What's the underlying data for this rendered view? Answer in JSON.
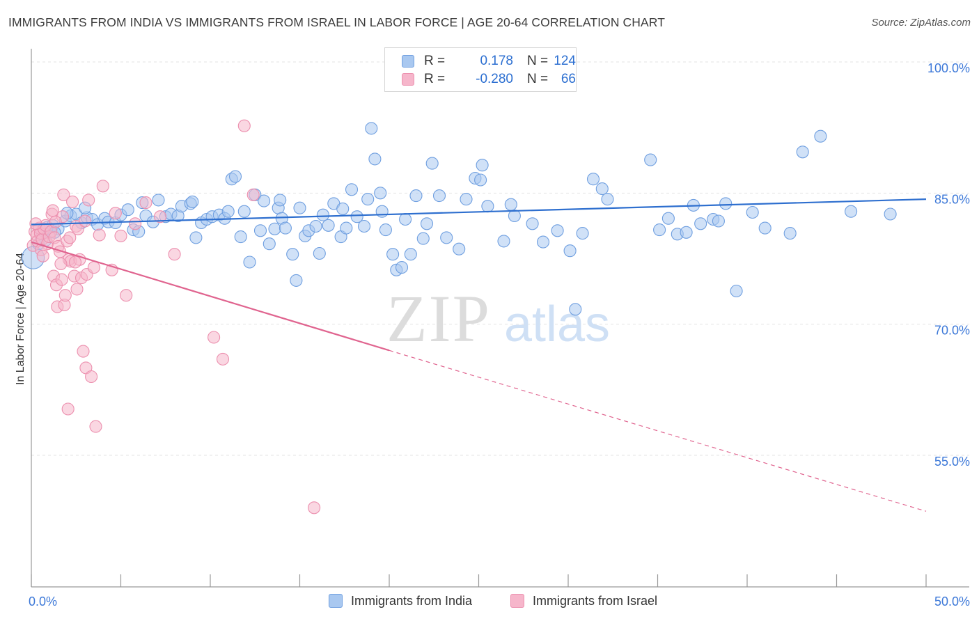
{
  "title": "IMMIGRANTS FROM INDIA VS IMMIGRANTS FROM ISRAEL IN LABOR FORCE | AGE 20-64 CORRELATION CHART",
  "source": "Source: ZipAtlas.com",
  "watermark": {
    "zip": "ZIP",
    "atlas": "atlas"
  },
  "legend": {
    "rows": [
      {
        "r_label": "R =",
        "r_value": "0.178",
        "n_label": "N =",
        "n_value": "124"
      },
      {
        "r_label": "R =",
        "r_value": "-0.280",
        "n_label": "N =",
        "n_value": "66"
      }
    ]
  },
  "bottom_legend": [
    "Immigrants from India",
    "Immigrants from Israel"
  ],
  "colors": {
    "india_fill": "#a9c8f0",
    "india_stroke": "#6f9fe0",
    "india_line": "#2e6fcf",
    "israel_fill": "#f6b6cb",
    "israel_stroke": "#ec8fae",
    "israel_line": "#e0648f",
    "tick_label": "#3c78d8",
    "grid": "#e3e3e3"
  },
  "chart_data": {
    "type": "scatter",
    "title": "IMMIGRANTS FROM INDIA VS IMMIGRANTS FROM ISRAEL IN LABOR FORCE | AGE 20-64 CORRELATION CHART",
    "xlabel": "",
    "ylabel": "In Labor Force | Age 20-64",
    "xlim": [
      0,
      50
    ],
    "ylim": [
      40,
      103
    ],
    "x_tick_labels": [
      {
        "value": 0,
        "label": "0.0%"
      },
      {
        "value": 50,
        "label": "50.0%"
      }
    ],
    "y_tick_labels": [
      {
        "value": 100,
        "label": "100.0%"
      },
      {
        "value": 85,
        "label": "85.0%"
      },
      {
        "value": 70,
        "label": "70.0%"
      },
      {
        "value": 55,
        "label": "55.0%"
      }
    ],
    "grid": true,
    "legend_position": "top-center",
    "series": [
      {
        "name": "Immigrants from India",
        "color": "#a9c8f0",
        "trend": {
          "x": [
            0,
            50
          ],
          "y": [
            81.4,
            84.3
          ],
          "style": "solid"
        },
        "points": [
          [
            0.1,
            77.6
          ],
          [
            0.4,
            79.2
          ],
          [
            0.6,
            80.3
          ],
          [
            0.9,
            81.1
          ],
          [
            1.2,
            81.3
          ],
          [
            1.5,
            80.9
          ],
          [
            1.9,
            81.8
          ],
          [
            2.2,
            82.4
          ],
          [
            2.5,
            82.6
          ],
          [
            2.8,
            81.6
          ],
          [
            3.1,
            82.2
          ],
          [
            3.4,
            82.0
          ],
          [
            3.7,
            81.4
          ],
          [
            4.1,
            82.1
          ],
          [
            4.3,
            81.7
          ],
          [
            4.7,
            81.6
          ],
          [
            5.0,
            82.5
          ],
          [
            5.4,
            83.1
          ],
          [
            5.7,
            80.8
          ],
          [
            6.0,
            80.6
          ],
          [
            6.4,
            82.4
          ],
          [
            6.8,
            81.7
          ],
          [
            7.1,
            84.2
          ],
          [
            7.5,
            82.3
          ],
          [
            7.8,
            82.6
          ],
          [
            8.2,
            82.4
          ],
          [
            8.4,
            83.5
          ],
          [
            8.9,
            83.8
          ],
          [
            9.2,
            79.9
          ],
          [
            9.5,
            81.6
          ],
          [
            9.8,
            82.0
          ],
          [
            10.1,
            82.3
          ],
          [
            10.5,
            82.5
          ],
          [
            10.8,
            82.1
          ],
          [
            11.0,
            82.9
          ],
          [
            11.2,
            86.6
          ],
          [
            11.4,
            86.9
          ],
          [
            11.7,
            80.0
          ],
          [
            11.9,
            82.9
          ],
          [
            12.2,
            77.1
          ],
          [
            12.5,
            84.8
          ],
          [
            12.8,
            80.7
          ],
          [
            13.0,
            84.1
          ],
          [
            13.3,
            79.2
          ],
          [
            13.6,
            80.9
          ],
          [
            13.8,
            83.3
          ],
          [
            14.0,
            82.1
          ],
          [
            14.2,
            81.0
          ],
          [
            14.6,
            78.0
          ],
          [
            14.8,
            75.0
          ],
          [
            15.0,
            83.3
          ],
          [
            15.3,
            80.1
          ],
          [
            15.5,
            80.7
          ],
          [
            15.9,
            81.2
          ],
          [
            16.1,
            78.1
          ],
          [
            16.3,
            82.5
          ],
          [
            16.6,
            81.3
          ],
          [
            16.9,
            83.8
          ],
          [
            17.3,
            80.0
          ],
          [
            17.6,
            81.0
          ],
          [
            17.9,
            85.4
          ],
          [
            18.2,
            82.3
          ],
          [
            18.6,
            81.2
          ],
          [
            18.8,
            84.3
          ],
          [
            19.0,
            92.4
          ],
          [
            19.2,
            88.9
          ],
          [
            19.5,
            85.0
          ],
          [
            19.6,
            82.9
          ],
          [
            19.8,
            80.8
          ],
          [
            20.2,
            78.0
          ],
          [
            20.4,
            76.2
          ],
          [
            20.7,
            76.5
          ],
          [
            20.9,
            82.0
          ],
          [
            21.2,
            78.0
          ],
          [
            21.5,
            84.7
          ],
          [
            22.1,
            81.5
          ],
          [
            22.4,
            88.4
          ],
          [
            22.8,
            84.7
          ],
          [
            23.2,
            79.9
          ],
          [
            23.9,
            78.6
          ],
          [
            24.3,
            84.3
          ],
          [
            24.8,
            86.7
          ],
          [
            25.1,
            86.5
          ],
          [
            25.2,
            88.2
          ],
          [
            25.5,
            83.5
          ],
          [
            26.4,
            79.5
          ],
          [
            26.8,
            83.7
          ],
          [
            27.0,
            82.4
          ],
          [
            28.0,
            81.5
          ],
          [
            28.6,
            79.4
          ],
          [
            29.4,
            80.7
          ],
          [
            30.1,
            78.4
          ],
          [
            30.4,
            71.7
          ],
          [
            30.8,
            80.4
          ],
          [
            31.4,
            86.6
          ],
          [
            31.9,
            85.5
          ],
          [
            32.2,
            84.3
          ],
          [
            34.6,
            88.8
          ],
          [
            35.1,
            80.8
          ],
          [
            35.6,
            82.1
          ],
          [
            36.1,
            80.3
          ],
          [
            36.6,
            80.5
          ],
          [
            37.0,
            83.6
          ],
          [
            37.4,
            81.5
          ],
          [
            38.1,
            82.0
          ],
          [
            38.4,
            81.8
          ],
          [
            38.8,
            83.8
          ],
          [
            39.4,
            73.8
          ],
          [
            40.3,
            82.8
          ],
          [
            41.0,
            81.0
          ],
          [
            42.4,
            80.4
          ],
          [
            43.1,
            89.7
          ],
          [
            44.1,
            91.5
          ],
          [
            45.8,
            82.9
          ],
          [
            48.0,
            82.6
          ],
          [
            0.8,
            79.6
          ],
          [
            1.3,
            80.5
          ],
          [
            2.0,
            82.7
          ],
          [
            3.0,
            83.3
          ],
          [
            6.2,
            83.9
          ],
          [
            9.0,
            84.0
          ],
          [
            13.9,
            84.2
          ],
          [
            17.4,
            83.2
          ],
          [
            21.9,
            79.8
          ]
        ]
      },
      {
        "name": "Immigrants from Israel",
        "color": "#f6b6cb",
        "trend": {
          "x": [
            0,
            20.0
          ],
          "y": [
            79.4,
            67.0
          ],
          "style": "solid",
          "dashed_to": {
            "x": 50,
            "y": 48.6
          }
        },
        "points": [
          [
            0.1,
            79.0
          ],
          [
            0.2,
            80.6
          ],
          [
            0.3,
            80.2
          ],
          [
            0.35,
            79.5
          ],
          [
            0.45,
            81.0
          ],
          [
            0.5,
            80.4
          ],
          [
            0.6,
            79.7
          ],
          [
            0.7,
            80.9
          ],
          [
            0.8,
            81.3
          ],
          [
            0.9,
            79.2
          ],
          [
            1.0,
            80.0
          ],
          [
            1.1,
            80.6
          ],
          [
            1.15,
            82.6
          ],
          [
            1.2,
            83.0
          ],
          [
            1.25,
            75.5
          ],
          [
            1.3,
            79.9
          ],
          [
            1.4,
            74.5
          ],
          [
            1.45,
            72.0
          ],
          [
            1.5,
            78.9
          ],
          [
            1.6,
            78.3
          ],
          [
            1.7,
            75.1
          ],
          [
            1.75,
            82.3
          ],
          [
            1.8,
            84.8
          ],
          [
            1.85,
            72.2
          ],
          [
            1.9,
            73.3
          ],
          [
            2.0,
            79.5
          ],
          [
            2.05,
            60.3
          ],
          [
            2.1,
            77.4
          ],
          [
            2.2,
            77.2
          ],
          [
            2.3,
            84.0
          ],
          [
            2.4,
            75.5
          ],
          [
            2.5,
            81.2
          ],
          [
            2.55,
            74.0
          ],
          [
            2.6,
            80.9
          ],
          [
            2.7,
            77.4
          ],
          [
            2.8,
            75.3
          ],
          [
            2.9,
            66.9
          ],
          [
            3.0,
            81.8
          ],
          [
            3.05,
            65.0
          ],
          [
            3.1,
            75.7
          ],
          [
            3.2,
            84.2
          ],
          [
            3.35,
            64.0
          ],
          [
            3.5,
            76.5
          ],
          [
            3.6,
            58.3
          ],
          [
            3.8,
            80.2
          ],
          [
            4.0,
            85.8
          ],
          [
            4.5,
            76.2
          ],
          [
            4.7,
            82.7
          ],
          [
            5.0,
            80.1
          ],
          [
            5.3,
            73.3
          ],
          [
            5.8,
            81.5
          ],
          [
            6.4,
            83.9
          ],
          [
            7.2,
            82.3
          ],
          [
            8.0,
            78.0
          ],
          [
            10.2,
            68.5
          ],
          [
            10.7,
            66.0
          ],
          [
            11.9,
            92.7
          ],
          [
            12.4,
            84.8
          ],
          [
            15.8,
            49.0
          ],
          [
            0.55,
            78.5
          ],
          [
            0.65,
            77.8
          ],
          [
            1.35,
            81.7
          ],
          [
            1.65,
            76.9
          ],
          [
            2.15,
            79.9
          ],
          [
            2.45,
            77.1
          ],
          [
            0.25,
            81.5
          ]
        ]
      }
    ]
  }
}
